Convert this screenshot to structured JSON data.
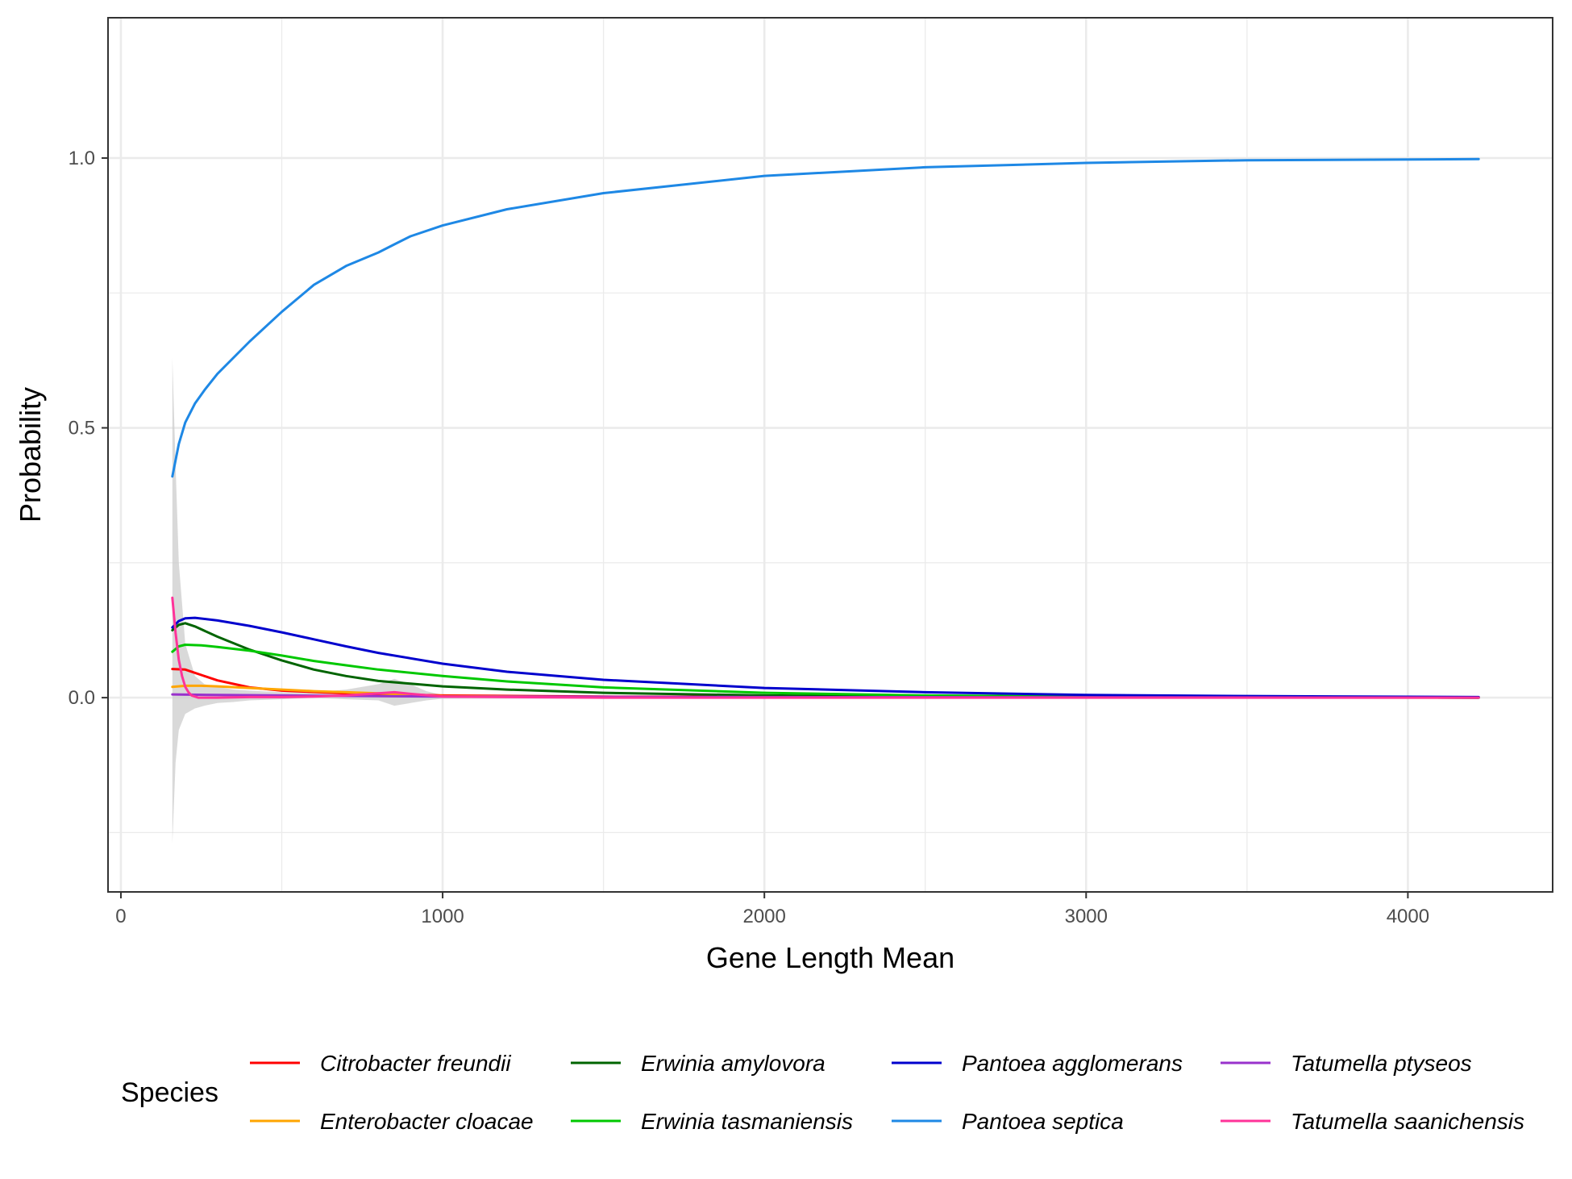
{
  "chart_data": {
    "type": "line",
    "xlabel": "Gene Length Mean",
    "ylabel": "Probability",
    "xlim": [
      -40,
      4450
    ],
    "ylim": [
      -0.36,
      1.26
    ],
    "x_ticks": [
      0,
      1000,
      2000,
      3000,
      4000
    ],
    "x_tick_labels": [
      "0",
      "1000",
      "2000",
      "3000",
      "4000"
    ],
    "y_ticks": [
      0.0,
      0.5,
      1.0
    ],
    "y_tick_labels": [
      "0.0",
      "0.5",
      "1.0"
    ],
    "x_minor_ticks": [
      500,
      1500,
      2500,
      3500
    ],
    "y_minor_ticks": [
      -0.25,
      0.25,
      0.75
    ],
    "grid": true,
    "legend": {
      "title": "Species",
      "position": "bottom"
    },
    "confidence_band": {
      "color": "#cccccc",
      "x": [
        160,
        170,
        180,
        200,
        230,
        260,
        300,
        350,
        400,
        500,
        600,
        700,
        800,
        850,
        900,
        950,
        1000,
        1100,
        4220
      ],
      "upper": [
        0.63,
        0.43,
        0.25,
        0.1,
        0.04,
        0.025,
        0.02,
        0.015,
        0.013,
        0.01,
        0.01,
        0.015,
        0.025,
        0.035,
        0.025,
        0.012,
        0.005,
        0.003,
        0.002
      ],
      "lower": [
        -0.27,
        -0.12,
        -0.06,
        -0.03,
        -0.02,
        -0.015,
        -0.01,
        -0.008,
        -0.005,
        -0.003,
        0.0,
        -0.003,
        -0.005,
        -0.015,
        -0.01,
        -0.005,
        -0.002,
        -0.002,
        -0.002
      ]
    },
    "series": [
      {
        "name": "Citrobacter freundii",
        "color": "#ff0000",
        "x": [
          160,
          200,
          250,
          300,
          400,
          500,
          700,
          1000,
          1500,
          4220
        ],
        "y": [
          0.053,
          0.052,
          0.042,
          0.032,
          0.019,
          0.013,
          0.008,
          0.004,
          0.002,
          0.0
        ]
      },
      {
        "name": "Enterobacter cloacae",
        "color": "#ffa500",
        "x": [
          160,
          200,
          250,
          300,
          400,
          500,
          600,
          700,
          800,
          900,
          1000,
          1500,
          4220
        ],
        "y": [
          0.02,
          0.022,
          0.022,
          0.021,
          0.018,
          0.015,
          0.012,
          0.01,
          0.008,
          0.005,
          0.003,
          0.001,
          0.0
        ]
      },
      {
        "name": "Erwinia amylovora",
        "color": "#006400",
        "x": [
          160,
          180,
          200,
          230,
          300,
          400,
          500,
          600,
          700,
          800,
          1000,
          1200,
          1500,
          2000,
          2500,
          3000,
          4220
        ],
        "y": [
          0.125,
          0.135,
          0.138,
          0.132,
          0.113,
          0.089,
          0.069,
          0.052,
          0.04,
          0.031,
          0.021,
          0.015,
          0.009,
          0.004,
          0.002,
          0.001,
          0.0
        ]
      },
      {
        "name": "Erwinia tasmaniensis",
        "color": "#00c800",
        "x": [
          160,
          180,
          200,
          250,
          300,
          400,
          500,
          600,
          700,
          800,
          1000,
          1200,
          1500,
          2000,
          2500,
          3000,
          4220
        ],
        "y": [
          0.085,
          0.095,
          0.098,
          0.097,
          0.094,
          0.087,
          0.078,
          0.068,
          0.06,
          0.052,
          0.04,
          0.03,
          0.019,
          0.009,
          0.004,
          0.002,
          0.0
        ]
      },
      {
        "name": "Pantoea agglomerans",
        "color": "#0000cd",
        "x": [
          160,
          180,
          200,
          230,
          300,
          400,
          500,
          600,
          700,
          800,
          1000,
          1200,
          1500,
          2000,
          2500,
          3000,
          3500,
          4220
        ],
        "y": [
          0.13,
          0.142,
          0.147,
          0.148,
          0.143,
          0.133,
          0.121,
          0.108,
          0.095,
          0.083,
          0.063,
          0.048,
          0.033,
          0.018,
          0.01,
          0.005,
          0.003,
          0.001
        ]
      },
      {
        "name": "Pantoea septica",
        "color": "#1e88e5",
        "x": [
          160,
          180,
          200,
          230,
          260,
          300,
          400,
          500,
          600,
          700,
          800,
          850,
          900,
          1000,
          1200,
          1500,
          2000,
          2500,
          3000,
          3500,
          4220
        ],
        "y": [
          0.41,
          0.47,
          0.51,
          0.545,
          0.57,
          0.6,
          0.66,
          0.715,
          0.765,
          0.8,
          0.825,
          0.84,
          0.855,
          0.875,
          0.905,
          0.935,
          0.967,
          0.983,
          0.991,
          0.996,
          0.998
        ]
      },
      {
        "name": "Tatumella ptyseos",
        "color": "#9932cc",
        "x": [
          160,
          300,
          500,
          1000,
          2000,
          4220
        ],
        "y": [
          0.006,
          0.005,
          0.004,
          0.002,
          0.001,
          0.0
        ]
      },
      {
        "name": "Tatumella saanichensis",
        "color": "#ff3399",
        "x": [
          160,
          170,
          180,
          190,
          200,
          210,
          220,
          240,
          300,
          400,
          500,
          600,
          700,
          800,
          850,
          900,
          1000,
          1500,
          4220
        ],
        "y": [
          0.185,
          0.12,
          0.07,
          0.04,
          0.02,
          0.01,
          0.004,
          0.0,
          0.0,
          0.001,
          0.001,
          0.002,
          0.004,
          0.008,
          0.01,
          0.007,
          0.002,
          0.0,
          0.0
        ]
      }
    ]
  }
}
